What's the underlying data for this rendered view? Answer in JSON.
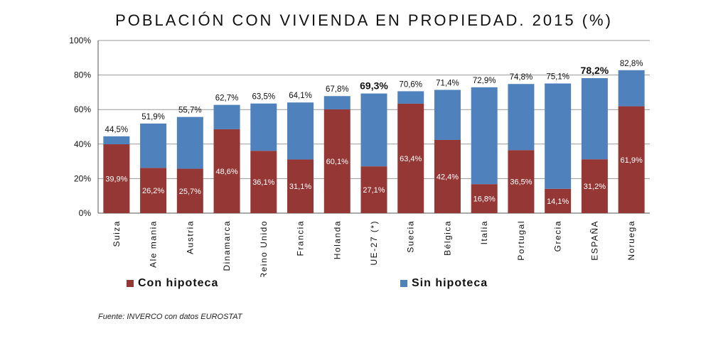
{
  "title": "POBLACIÓN CON VIVIENDA EN PROPIEDAD. 2015 (%)",
  "source": "Fuente: INVERCO con datos EUROSTAT",
  "colors": {
    "con": "#953735",
    "sin": "#4f81bd"
  },
  "chart_data": {
    "type": "bar",
    "stacked": true,
    "title": "POBLACIÓN CON VIVIENDA EN PROPIEDAD. 2015 (%)",
    "categories": [
      "Suiza",
      "Alemania",
      "Austria",
      "Dinamarca",
      "Reino Unido",
      "Francia",
      "Holanda",
      "UE-27 (*)",
      "Suecia",
      "Bélgica",
      "Italia",
      "Portugal",
      "Grecia",
      "ESPAÑA",
      "Noruega"
    ],
    "category_labels": [
      "Suiza",
      "Ale mania",
      "Austria",
      "Dinamarca",
      "Reino Unido",
      "Francia",
      "Holanda",
      "UE-27 (*)",
      "Suecia",
      "Bélgica",
      "Italia",
      "Portugal",
      "Grecia",
      "ESPAÑA",
      "Noruega"
    ],
    "series": [
      {
        "name": "Con hipoteca",
        "values": [
          39.9,
          26.2,
          25.7,
          48.6,
          36.1,
          31.1,
          60.1,
          27.1,
          63.4,
          42.4,
          16.8,
          36.5,
          14.1,
          31.2,
          61.9
        ],
        "labels": [
          "39,9%",
          "26,2%",
          "25,7%",
          "48,6%",
          "36,1%",
          "31,1%",
          "60,1%",
          "27,1%",
          "63,4%",
          "42,4%",
          "16,8%",
          "36,5%",
          "14,1%",
          "31,2%",
          "61,9%"
        ]
      },
      {
        "name": "Sin hipoteca",
        "values": [
          4.6,
          25.7,
          30.0,
          14.1,
          27.4,
          33.0,
          7.7,
          42.2,
          7.2,
          29.0,
          56.1,
          38.3,
          61.0,
          47.0,
          20.9
        ]
      }
    ],
    "totals": [
      44.5,
      51.9,
      55.7,
      62.7,
      63.5,
      64.1,
      67.8,
      69.3,
      70.6,
      71.4,
      72.9,
      74.8,
      75.1,
      78.2,
      82.8
    ],
    "total_labels": [
      "44,5%",
      "51,9%",
      "55,7%",
      "62,7%",
      "63,5%",
      "64,1%",
      "67,8%",
      "69,3%",
      "70,6%",
      "71,4%",
      "72,9%",
      "74,8%",
      "75,1%",
      "78,2%",
      "82,8%"
    ],
    "highlighted_totals": [
      "UE-27 (*)",
      "ESPAÑA"
    ],
    "y_ticks": [
      "0%",
      "20%",
      "40%",
      "60%",
      "80%",
      "100%"
    ],
    "ylim": [
      0,
      100
    ],
    "grid": true,
    "legend": "bottom"
  }
}
